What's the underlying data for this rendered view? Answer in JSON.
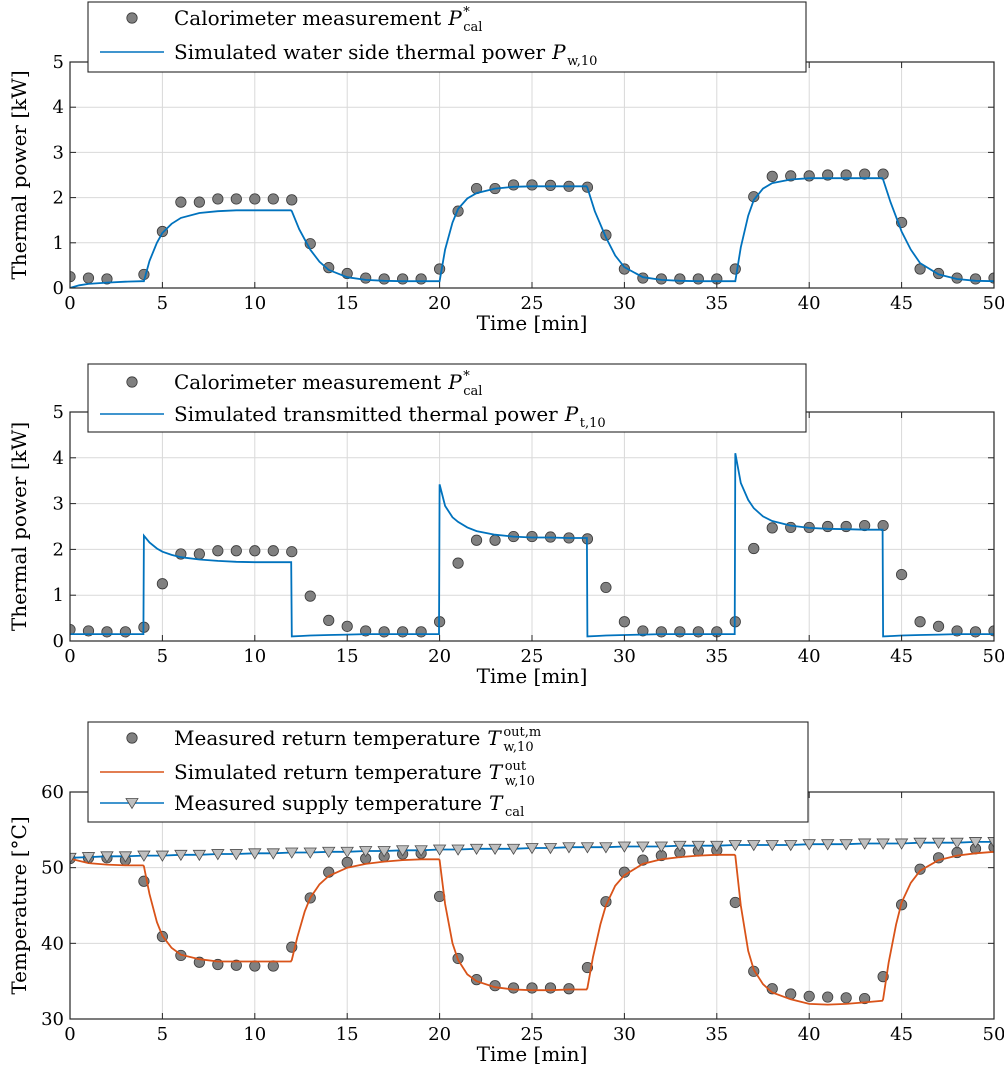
{
  "colors": {
    "marker_gray": "#808080",
    "water_blue": "#0072BD",
    "return_orange": "#D95319",
    "supply_marker": "#BFBFBF",
    "grid": "#d9d9d9"
  },
  "chart_data": [
    {
      "type": "line",
      "xlabel": "Time [min]",
      "ylabel": "Thermal power [kW]",
      "xlim": [
        0,
        50
      ],
      "ylim": [
        0,
        5
      ],
      "xticks": [
        0,
        5,
        10,
        15,
        20,
        25,
        30,
        35,
        40,
        45,
        50
      ],
      "yticks": [
        0,
        1,
        2,
        3,
        4,
        5
      ],
      "grid": true,
      "legend_position": "top-left (outside above axes)",
      "series": [
        {
          "name": "Calorimeter measurement",
          "symbol_main": "P",
          "symbol_sup": "*",
          "symbol_sub": "cal",
          "kind": "marker-circle",
          "x": [
            0,
            1,
            2,
            4,
            5,
            6,
            7,
            8,
            9,
            10,
            11,
            12,
            13,
            14,
            15,
            16,
            17,
            18,
            19,
            20,
            21,
            22,
            23,
            24,
            25,
            26,
            27,
            28,
            29,
            30,
            31,
            32,
            33,
            34,
            35,
            36,
            37,
            38,
            39,
            40,
            41,
            42,
            43,
            44,
            45,
            46,
            47,
            48,
            49,
            50
          ],
          "y": [
            0.25,
            0.22,
            0.2,
            0.3,
            1.25,
            1.9,
            1.9,
            1.97,
            1.97,
            1.97,
            1.97,
            1.95,
            0.98,
            0.45,
            0.32,
            0.22,
            0.2,
            0.2,
            0.2,
            0.42,
            1.7,
            2.2,
            2.2,
            2.28,
            2.28,
            2.27,
            2.25,
            2.23,
            1.17,
            0.42,
            0.22,
            0.2,
            0.2,
            0.2,
            0.2,
            0.42,
            2.02,
            2.47,
            2.48,
            2.48,
            2.5,
            2.5,
            2.52,
            2.52,
            1.45,
            0.42,
            0.32,
            0.22,
            0.2,
            0.22
          ]
        },
        {
          "name": "Simulated water side thermal power",
          "symbol_main": "P",
          "symbol_sub": "w,10",
          "kind": "line",
          "x": [
            0,
            0.5,
            1,
            2,
            3,
            3.9,
            4,
            4.3,
            4.7,
            5,
            5.5,
            6,
            7,
            8,
            9,
            10,
            11,
            11.95,
            12,
            12.4,
            13,
            13.5,
            14,
            15,
            16,
            17,
            18,
            19,
            19.95,
            20,
            20.3,
            20.7,
            21,
            21.5,
            22,
            23,
            24,
            25,
            26,
            27,
            27.95,
            28,
            28.4,
            29,
            29.5,
            30,
            31,
            32,
            33,
            34,
            35,
            35.95,
            36,
            36.3,
            36.7,
            37,
            37.5,
            38,
            39,
            40,
            41,
            42,
            43,
            43.95,
            44,
            44.4,
            45,
            45.5,
            46,
            47,
            48,
            49,
            50
          ],
          "y": [
            0.0,
            0.06,
            0.09,
            0.12,
            0.14,
            0.15,
            0.15,
            0.6,
            1.0,
            1.22,
            1.42,
            1.55,
            1.66,
            1.7,
            1.72,
            1.72,
            1.72,
            1.72,
            1.7,
            1.3,
            0.85,
            0.58,
            0.4,
            0.24,
            0.18,
            0.16,
            0.15,
            0.15,
            0.15,
            0.15,
            0.85,
            1.45,
            1.75,
            1.98,
            2.1,
            2.2,
            2.24,
            2.25,
            2.25,
            2.25,
            2.25,
            2.22,
            1.7,
            1.12,
            0.72,
            0.46,
            0.24,
            0.18,
            0.16,
            0.15,
            0.15,
            0.15,
            0.15,
            0.9,
            1.6,
            1.95,
            2.2,
            2.32,
            2.4,
            2.43,
            2.43,
            2.43,
            2.43,
            2.43,
            2.4,
            1.9,
            1.25,
            0.85,
            0.55,
            0.3,
            0.2,
            0.16,
            0.15
          ]
        }
      ]
    },
    {
      "type": "line",
      "xlabel": "Time [min]",
      "ylabel": "Thermal power [kW]",
      "xlim": [
        0,
        50
      ],
      "ylim": [
        0,
        5
      ],
      "xticks": [
        0,
        5,
        10,
        15,
        20,
        25,
        30,
        35,
        40,
        45,
        50
      ],
      "yticks": [
        0,
        1,
        2,
        3,
        4,
        5
      ],
      "grid": true,
      "legend_position": "top-left (outside above axes)",
      "series": [
        {
          "name": "Calorimeter measurement",
          "symbol_main": "P",
          "symbol_sup": "*",
          "symbol_sub": "cal",
          "kind": "marker-circle",
          "x": [
            0,
            1,
            2,
            3,
            4,
            5,
            6,
            7,
            8,
            9,
            10,
            11,
            12,
            13,
            14,
            15,
            16,
            17,
            18,
            19,
            20,
            21,
            22,
            23,
            24,
            25,
            26,
            27,
            28,
            29,
            30,
            31,
            32,
            33,
            34,
            35,
            36,
            37,
            38,
            39,
            40,
            41,
            42,
            43,
            44,
            45,
            46,
            47,
            48,
            49,
            50
          ],
          "y": [
            0.25,
            0.22,
            0.2,
            0.2,
            0.3,
            1.25,
            1.9,
            1.9,
            1.97,
            1.97,
            1.97,
            1.97,
            1.95,
            0.98,
            0.45,
            0.32,
            0.22,
            0.2,
            0.2,
            0.2,
            0.42,
            1.7,
            2.2,
            2.2,
            2.28,
            2.28,
            2.27,
            2.25,
            2.23,
            1.17,
            0.42,
            0.22,
            0.2,
            0.2,
            0.2,
            0.2,
            0.42,
            2.02,
            2.47,
            2.48,
            2.48,
            2.5,
            2.5,
            2.52,
            2.52,
            1.45,
            0.42,
            0.32,
            0.22,
            0.2,
            0.22
          ]
        },
        {
          "name": "Simulated transmitted thermal power",
          "symbol_main": "P",
          "symbol_sub": "t,10",
          "kind": "line",
          "x": [
            0,
            1,
            2,
            3,
            3.97,
            4.0,
            4.3,
            4.7,
            5,
            5.5,
            6,
            7,
            8,
            9,
            10,
            11,
            11.97,
            12.0,
            12.5,
            13,
            14,
            15,
            16,
            17,
            18,
            19,
            19.97,
            20.0,
            20.3,
            20.7,
            21,
            21.5,
            22,
            23,
            24,
            25,
            26,
            27,
            27.97,
            28.0,
            28.5,
            29,
            30,
            31,
            32,
            33,
            34,
            35,
            35.97,
            36.0,
            36.3,
            36.7,
            37,
            37.5,
            38,
            39,
            40,
            41,
            42,
            43,
            43.97,
            44.0,
            44.5,
            45,
            46,
            47,
            48,
            49,
            50
          ],
          "y": [
            0.15,
            0.15,
            0.15,
            0.15,
            0.15,
            2.3,
            2.15,
            2.02,
            1.95,
            1.88,
            1.83,
            1.78,
            1.75,
            1.73,
            1.72,
            1.72,
            1.72,
            0.1,
            0.11,
            0.12,
            0.13,
            0.14,
            0.15,
            0.15,
            0.15,
            0.15,
            0.15,
            3.42,
            2.95,
            2.7,
            2.6,
            2.48,
            2.4,
            2.32,
            2.28,
            2.26,
            2.26,
            2.25,
            2.25,
            0.1,
            0.11,
            0.12,
            0.13,
            0.14,
            0.15,
            0.15,
            0.15,
            0.15,
            0.15,
            4.1,
            3.45,
            3.08,
            2.9,
            2.72,
            2.62,
            2.52,
            2.47,
            2.45,
            2.44,
            2.43,
            2.43,
            0.1,
            0.11,
            0.12,
            0.13,
            0.14,
            0.15,
            0.15,
            0.15
          ]
        }
      ]
    },
    {
      "type": "line",
      "xlabel": "Time [min]",
      "ylabel": "Temperature [°C]",
      "xlim": [
        0,
        50
      ],
      "ylim": [
        30,
        60
      ],
      "xticks": [
        0,
        5,
        10,
        15,
        20,
        25,
        30,
        35,
        40,
        45,
        50
      ],
      "yticks": [
        30,
        40,
        50,
        60
      ],
      "grid": true,
      "legend_position": "top-left (outside above axes)",
      "series": [
        {
          "name": "Measured return temperature",
          "symbol_main": "T",
          "symbol_sup": "out,m",
          "symbol_sub": "w,10",
          "kind": "marker-circle",
          "x": [
            0,
            1,
            2,
            3,
            4,
            5,
            6,
            7,
            8,
            9,
            10,
            11,
            12,
            13,
            14,
            15,
            16,
            17,
            18,
            19,
            20,
            21,
            22,
            23,
            24,
            25,
            26,
            27,
            28,
            29,
            30,
            31,
            32,
            33,
            34,
            35,
            36,
            37,
            38,
            39,
            40,
            41,
            42,
            43,
            44,
            45,
            46,
            47,
            48,
            49,
            50
          ],
          "y": [
            51.2,
            51.3,
            51.3,
            51.0,
            48.2,
            40.9,
            38.4,
            37.5,
            37.2,
            37.1,
            37.0,
            37.0,
            39.5,
            46.0,
            49.4,
            50.7,
            51.2,
            51.5,
            51.8,
            51.9,
            46.2,
            38.0,
            35.2,
            34.4,
            34.1,
            34.1,
            34.1,
            34.0,
            36.8,
            45.5,
            49.4,
            51.0,
            51.6,
            52.0,
            52.2,
            52.3,
            45.4,
            36.3,
            34.0,
            33.3,
            33.0,
            32.9,
            32.8,
            32.7,
            35.6,
            45.1,
            49.8,
            51.3,
            52.0,
            52.5,
            52.7
          ]
        },
        {
          "name": "Simulated return temperature",
          "symbol_main": "T",
          "symbol_sup": "out",
          "symbol_sub": "w,10",
          "kind": "line",
          "x": [
            0,
            0.5,
            1,
            2,
            3,
            3.95,
            4,
            4.3,
            4.7,
            5,
            5.5,
            6,
            7,
            8,
            9,
            10,
            11,
            11.95,
            12,
            12.3,
            12.7,
            13,
            13.5,
            14,
            15,
            16,
            17,
            18,
            19,
            19.95,
            20,
            20.3,
            20.7,
            21,
            21.5,
            22,
            23,
            24,
            25,
            26,
            27,
            27.95,
            28,
            28.3,
            28.7,
            29,
            29.5,
            30,
            31,
            32,
            33,
            34,
            35,
            35.95,
            36,
            36.3,
            36.7,
            37,
            37.5,
            38,
            39,
            40,
            41,
            42,
            43,
            43.95,
            44,
            44.3,
            44.7,
            45,
            45.5,
            46,
            47,
            48,
            49,
            50
          ],
          "y": [
            51.2,
            50.9,
            50.6,
            50.4,
            50.3,
            50.3,
            50.2,
            46.5,
            42.8,
            41.0,
            39.4,
            38.5,
            37.9,
            37.6,
            37.6,
            37.6,
            37.6,
            37.6,
            37.8,
            40.8,
            44.2,
            46.0,
            47.8,
            48.9,
            50.0,
            50.5,
            50.8,
            51.0,
            51.1,
            51.1,
            51.0,
            45.2,
            40.0,
            37.8,
            35.9,
            35.0,
            34.2,
            33.9,
            33.8,
            33.8,
            33.9,
            33.9,
            34.1,
            38.2,
            42.5,
            45.0,
            47.6,
            49.0,
            50.5,
            51.1,
            51.4,
            51.6,
            51.7,
            51.7,
            51.6,
            45.0,
            39.0,
            36.5,
            34.6,
            33.5,
            32.6,
            32.0,
            31.9,
            32.0,
            32.2,
            32.4,
            32.6,
            37.5,
            42.5,
            45.4,
            48.0,
            49.6,
            51.0,
            51.6,
            51.9,
            52.1
          ]
        },
        {
          "name": "Measured supply temperature",
          "symbol_main": "T",
          "symbol_sub": "cal",
          "kind": "line-triangle",
          "x": [
            0,
            1,
            2,
            3,
            4,
            5,
            6,
            7,
            8,
            9,
            10,
            11,
            12,
            13,
            14,
            15,
            16,
            17,
            18,
            19,
            20,
            21,
            22,
            23,
            24,
            25,
            26,
            27,
            28,
            29,
            30,
            31,
            32,
            33,
            34,
            35,
            36,
            37,
            38,
            39,
            40,
            41,
            42,
            43,
            44,
            45,
            46,
            47,
            48,
            49,
            50
          ],
          "y": [
            51.3,
            51.4,
            51.5,
            51.5,
            51.6,
            51.6,
            51.7,
            51.7,
            51.8,
            51.8,
            51.9,
            51.9,
            52.0,
            52.0,
            52.1,
            52.1,
            52.2,
            52.2,
            52.3,
            52.3,
            52.4,
            52.4,
            52.5,
            52.5,
            52.5,
            52.6,
            52.6,
            52.7,
            52.7,
            52.7,
            52.8,
            52.8,
            52.8,
            52.9,
            52.9,
            52.9,
            53.0,
            53.0,
            53.0,
            53.0,
            53.1,
            53.1,
            53.1,
            53.2,
            53.2,
            53.2,
            53.3,
            53.3,
            53.3,
            53.4,
            53.4
          ]
        }
      ]
    }
  ]
}
